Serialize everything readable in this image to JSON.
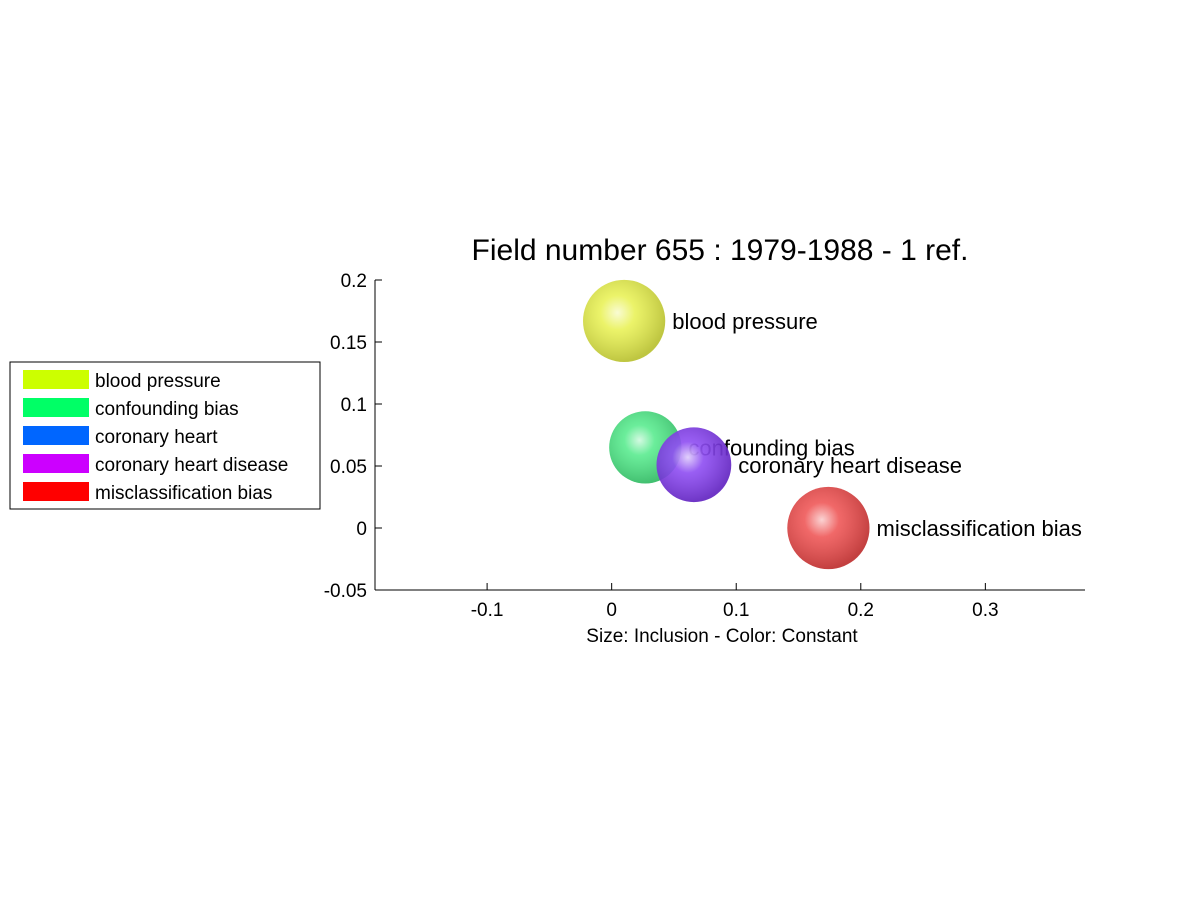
{
  "chart_data": {
    "type": "scatter",
    "title": "Field number 655 : 1979-1988  - 1 ref.",
    "xlabel": "Size: Inclusion - Color: Constant",
    "ylabel": "",
    "xlim": [
      -0.19,
      0.38
    ],
    "ylim": [
      -0.05,
      0.2
    ],
    "x_ticks": [
      "-0.1",
      "0",
      "0.1",
      "0.2",
      "0.3"
    ],
    "x_tick_values": [
      -0.1,
      0,
      0.1,
      0.2,
      0.3
    ],
    "y_ticks": [
      "-0.05",
      "0",
      "0.05",
      "0.1",
      "0.15",
      "0.2"
    ],
    "y_tick_values": [
      -0.05,
      0,
      0.05,
      0.1,
      0.15,
      0.2
    ],
    "grid": false,
    "legend_position": "left",
    "points": [
      {
        "label": "blood pressure",
        "x": 0.01,
        "y": 0.167,
        "size": 0.033,
        "color": "#e6f03c"
      },
      {
        "label": "confounding bias",
        "x": 0.027,
        "y": 0.065,
        "size": 0.029,
        "color": "#3ee87c"
      },
      {
        "label": "coronary heart disease",
        "x": 0.066,
        "y": 0.051,
        "size": 0.03,
        "color": "#7a2ef0"
      },
      {
        "label": "misclassification bias",
        "x": 0.174,
        "y": 0.0,
        "size": 0.033,
        "color": "#ec3b3b"
      }
    ],
    "legend": [
      {
        "label": "blood pressure",
        "color": "#ccff00"
      },
      {
        "label": "confounding bias",
        "color": "#00ff66"
      },
      {
        "label": "coronary heart",
        "color": "#0066ff"
      },
      {
        "label": "coronary heart disease",
        "color": "#cc00ff"
      },
      {
        "label": "misclassification bias",
        "color": "#ff0000"
      }
    ]
  }
}
